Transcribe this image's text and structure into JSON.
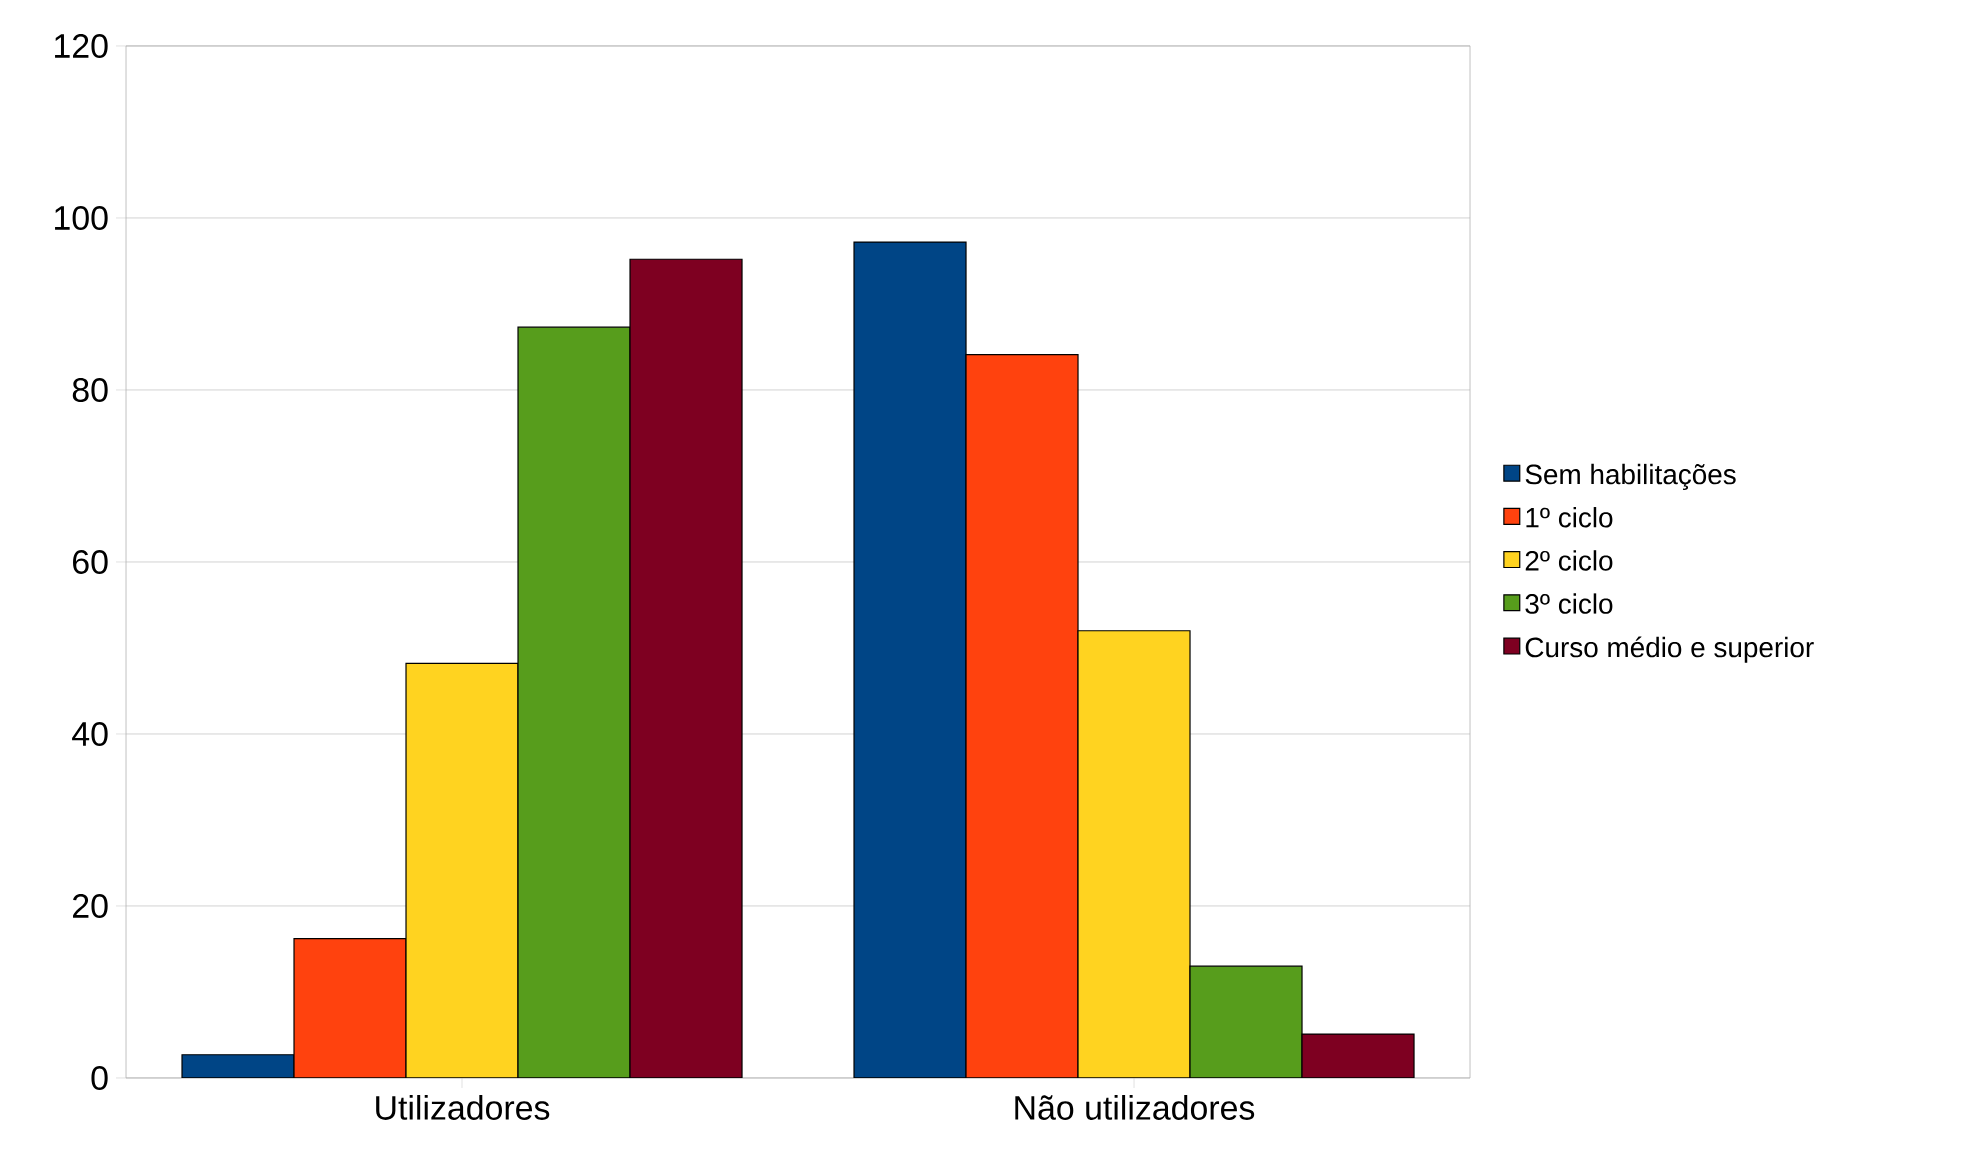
{
  "chart_data": {
    "type": "bar",
    "categories": [
      "Utilizadores",
      "Não utilizadores"
    ],
    "series": [
      {
        "name": "Sem habilitações",
        "color": "#004586",
        "values": [
          2.7,
          97.2
        ]
      },
      {
        "name": "1º ciclo",
        "color": "#ff420e",
        "values": [
          16.2,
          84.1
        ]
      },
      {
        "name": "2º ciclo",
        "color": "#ffd320",
        "values": [
          48.2,
          52
        ]
      },
      {
        "name": "3º ciclo",
        "color": "#579d1c",
        "values": [
          87.3,
          13
        ]
      },
      {
        "name": "Curso médio e superior",
        "color": "#7e0021",
        "values": [
          95.2,
          5.1
        ]
      }
    ],
    "ylim": [
      0,
      120
    ],
    "yticks": [
      0,
      20,
      40,
      60,
      80,
      100,
      120
    ],
    "grid": "y",
    "legend": "right"
  }
}
